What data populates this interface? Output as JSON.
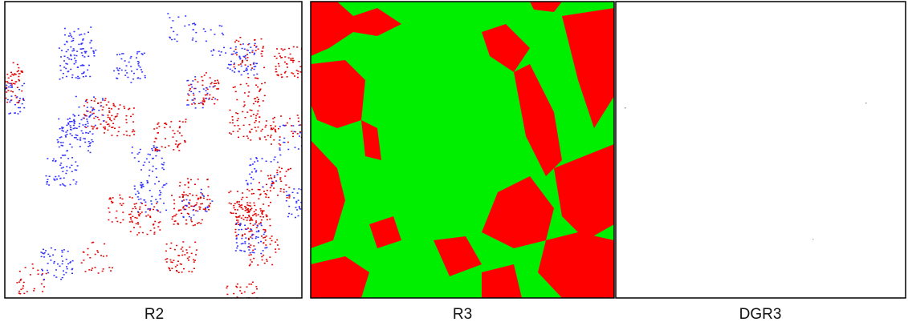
{
  "panels": [
    {
      "label": "R2"
    },
    {
      "label": "R3"
    },
    {
      "label": "DGR3"
    }
  ]
}
